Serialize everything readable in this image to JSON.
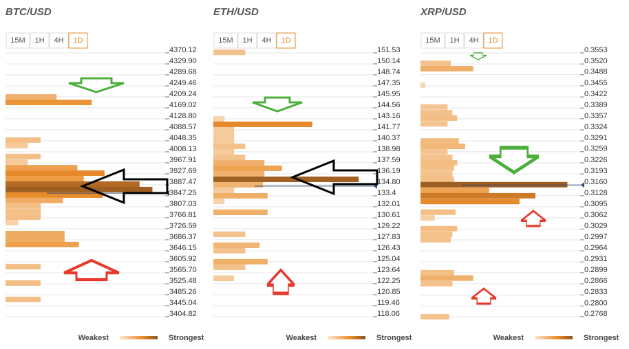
{
  "chart_data": [
    {
      "type": "barh",
      "title": "BTC/USD",
      "tabs": [
        "15M",
        "1H",
        "4H",
        "1D"
      ],
      "active_tab": 3,
      "ylim": [
        3404.82,
        4370.12
      ],
      "yticks": [
        4370.12,
        {
          "value": 4329.9,
          "label": "4329.90"
        },
        4289.68,
        4249.46,
        4209.24,
        4169.02,
        {
          "value": 4128.8,
          "label": "4128.80"
        },
        4088.57,
        4048.35,
        4008.13,
        3967.91,
        3927.69,
        3887.47,
        3847.25,
        3807.03,
        3766.81,
        3726.59,
        3686.37,
        3646.15,
        3605.92,
        {
          "value": 3565.7,
          "label": "3565.70"
        },
        3525.48,
        3485.26,
        3445.04,
        3404.82
      ],
      "xlim": [
        0,
        100
      ],
      "y": [
        4209,
        4189,
        4051,
        4031,
        3991,
        3970,
        3950,
        3930,
        3910,
        3890,
        3870,
        3850,
        3830,
        3810,
        3789,
        3769,
        3749,
        3709,
        3689,
        3669,
        3588,
        3528,
        3468
      ],
      "values": [
        32,
        54,
        22,
        14,
        22,
        14,
        45,
        62,
        49,
        84,
        92,
        61,
        36,
        22,
        22,
        22,
        8,
        37,
        37,
        46,
        22,
        22,
        22
      ],
      "current_price": 3857,
      "legend": [
        "Weakest",
        "Strongest"
      ],
      "colors": [
        "#f8dcbb",
        "#ea8c2a",
        "#8c5420"
      ]
    },
    {
      "type": "barh",
      "title": "ETH/USD",
      "tabs": [
        "15M",
        "1H",
        "4H",
        "1D"
      ],
      "active_tab": 3,
      "ylim": [
        118.06,
        151.53
      ],
      "yticks": [
        151.53,
        150.14,
        148.74,
        147.35,
        145.95,
        144.56,
        143.16,
        141.77,
        140.37,
        138.98,
        137.59,
        136.19,
        {
          "value": 134.8,
          "label": "134.80"
        },
        133.4,
        132.01,
        130.61,
        129.22,
        127.83,
        126.43,
        125.04,
        123.64,
        122.25,
        120.85,
        119.46,
        118.06
      ],
      "xlim": [
        0,
        100
      ],
      "y": [
        151.6,
        143.16,
        142.47,
        141.77,
        141.07,
        140.37,
        139.68,
        138.98,
        138.28,
        137.58,
        136.89,
        136.19,
        135.49,
        134.8,
        134.1,
        133.4,
        132.7,
        131.31,
        128.52,
        127.13,
        126.43,
        125.04,
        124.34,
        122.94
      ],
      "values": [
        20,
        7,
        62,
        13,
        13,
        13,
        20,
        13,
        20,
        32,
        43,
        32,
        91,
        31,
        13,
        34,
        7,
        34,
        20,
        29,
        20,
        34,
        20,
        13
      ],
      "current_price": 134.63,
      "legend": [
        "Weakest",
        "Strongest"
      ],
      "colors": [
        "#f8dcbb",
        "#ea8c2a",
        "#8c5420"
      ]
    },
    {
      "type": "barh",
      "title": "XRP/USD",
      "tabs": [
        "15M",
        "1H",
        "4H",
        "1D"
      ],
      "active_tab": 3,
      "ylim": [
        0.2768,
        0.3553
      ],
      "yticks": [
        0.3553,
        {
          "value": 0.352,
          "label": "0.3520"
        },
        0.3488,
        0.3455,
        0.3422,
        0.3389,
        0.3357,
        0.3324,
        0.3291,
        0.3259,
        0.3226,
        0.3193,
        {
          "value": 0.316,
          "label": "0.3160"
        },
        0.3128,
        0.3095,
        0.3062,
        0.3029,
        0.2997,
        0.2964,
        0.2931,
        0.2899,
        0.2866,
        0.2833,
        {
          "value": 0.28,
          "label": "0.2800"
        },
        0.2768
      ],
      "xlim": [
        0,
        100
      ],
      "y": [
        0.3522,
        0.3506,
        0.3457,
        0.3392,
        0.3375,
        0.3359,
        0.3342,
        0.3291,
        0.3275,
        0.3259,
        0.3242,
        0.3226,
        0.321,
        0.3193,
        0.3177,
        0.3161,
        0.3144,
        0.3128,
        0.3111,
        0.3079,
        0.3062,
        0.303,
        0.3013,
        0.2997,
        0.2899,
        0.2883,
        0.2866,
        0.2768
      ],
      "values": [
        19,
        33,
        3,
        17,
        20,
        23,
        17,
        24,
        28,
        17,
        20,
        23,
        21,
        20,
        21,
        92,
        43,
        72,
        62,
        22,
        9,
        23,
        20,
        19,
        21,
        33,
        20,
        18
      ],
      "current_price": 0.316,
      "legend": [
        "Weakest",
        "Strongest"
      ],
      "colors": [
        "#f8dcbb",
        "#ea8c2a",
        "#8c5420"
      ]
    }
  ]
}
